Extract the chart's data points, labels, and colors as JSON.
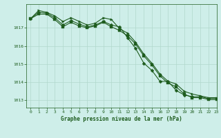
{
  "title": "Graphe pression niveau de la mer (hPa)",
  "bg_color": "#ceeee9",
  "grid_color": "#b0d8cc",
  "line_color": "#1e5c1e",
  "xlim": [
    -0.5,
    23
  ],
  "ylim": [
    1012.6,
    1018.3
  ],
  "yticks": [
    1013,
    1014,
    1015,
    1016,
    1017
  ],
  "xtick_labels": [
    "0",
    "1",
    "2",
    "3",
    "4",
    "5",
    "6",
    "7",
    "8",
    "9",
    "10",
    "11",
    "12",
    "13",
    "14",
    "15",
    "16",
    "17",
    "18",
    "19",
    "20",
    "21",
    "22",
    "23"
  ],
  "series": [
    [
      1017.5,
      1017.85,
      1017.8,
      1017.55,
      1017.15,
      1017.4,
      1017.2,
      1017.05,
      1017.15,
      1017.35,
      1017.15,
      1017.05,
      1016.45,
      1015.85,
      1015.05,
      1014.65,
      1014.05,
      1014.05,
      1013.55,
      1013.3,
      1013.2,
      1013.2,
      1013.1,
      1013.1
    ],
    [
      1017.5,
      1017.95,
      1017.85,
      1017.65,
      1017.35,
      1017.55,
      1017.35,
      1017.15,
      1017.25,
      1017.55,
      1017.45,
      1016.95,
      1016.7,
      1016.2,
      1015.55,
      1015.05,
      1014.45,
      1014.05,
      1013.9,
      1013.5,
      1013.35,
      1013.25,
      1013.15,
      1013.15
    ],
    [
      1017.5,
      1017.75,
      1017.75,
      1017.45,
      1017.05,
      1017.3,
      1017.1,
      1017.0,
      1017.1,
      1017.3,
      1017.05,
      1016.85,
      1016.55,
      1016.1,
      1015.45,
      1014.95,
      1014.35,
      1013.95,
      1013.75,
      1013.35,
      1013.15,
      1013.15,
      1013.05,
      1013.05
    ]
  ]
}
